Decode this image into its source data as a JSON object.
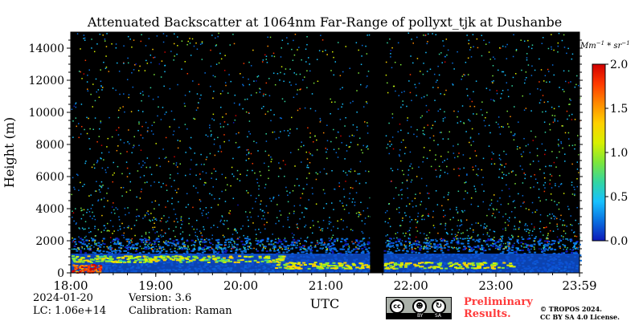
{
  "chart_data": {
    "type": "heatmap",
    "title": "Attenuated Backscatter at 1064nm Far-Range of pollyxt_tjk at Dushanbe",
    "xlabel": "UTC",
    "ylabel": "Height (m)",
    "x_tick_labels": [
      "18:00",
      "19:00",
      "20:00",
      "21:00",
      "22:00",
      "23:00",
      "23:59"
    ],
    "x_range_hours": [
      18.0,
      23.983
    ],
    "y_ticks": [
      0,
      2000,
      4000,
      6000,
      8000,
      10000,
      12000,
      14000
    ],
    "ylim": [
      0,
      15000
    ],
    "colorbar": {
      "unit_label": "Mm^{-1}*sr^{-1}",
      "ticks": [
        "0.0",
        "0.5",
        "1.0",
        "1.5",
        "2.0"
      ],
      "range": [
        0.0,
        2.0
      ],
      "colormap": [
        "#0d19b8",
        "#0a6fe0",
        "#17c1ff",
        "#33d6a0",
        "#7de63a",
        "#d8f000",
        "#ffd000",
        "#ff8a00",
        "#ff3a00",
        "#d10000"
      ]
    },
    "data_gap_hours": [
      21.52,
      21.68
    ],
    "features": [
      {
        "name": "dense boundary layer",
        "height_range_m": [
          0,
          1500
        ]
      },
      {
        "name": "aerosol layer 18:00-20:30",
        "height_range_m": [
          600,
          1000
        ],
        "value_level": 1.2
      },
      {
        "name": "aerosol layer 20:30-23:15",
        "height_range_m": [
          200,
          600
        ],
        "value_level": 1.3
      },
      {
        "name": "strong signal near 18:00",
        "height_range_m": [
          0,
          500
        ],
        "value_level": 2.0
      }
    ]
  },
  "footer": {
    "date": "2024-01-20",
    "lc": "LC: 1.06e+14",
    "version": "Version: 3.6",
    "calibration": "Calibration: Raman",
    "preliminary_line1": "Preliminary",
    "preliminary_line2": "Results.",
    "copyright_line1": "© TROPOS 2024.",
    "copyright_line2": "CC BY SA 4.0 License."
  },
  "license_badge": {
    "icons": [
      "cc-icon",
      "attribution-icon",
      "share-alike-icon"
    ],
    "cc_text": "cc",
    "by_text": "BY",
    "sa_text": "SA"
  }
}
